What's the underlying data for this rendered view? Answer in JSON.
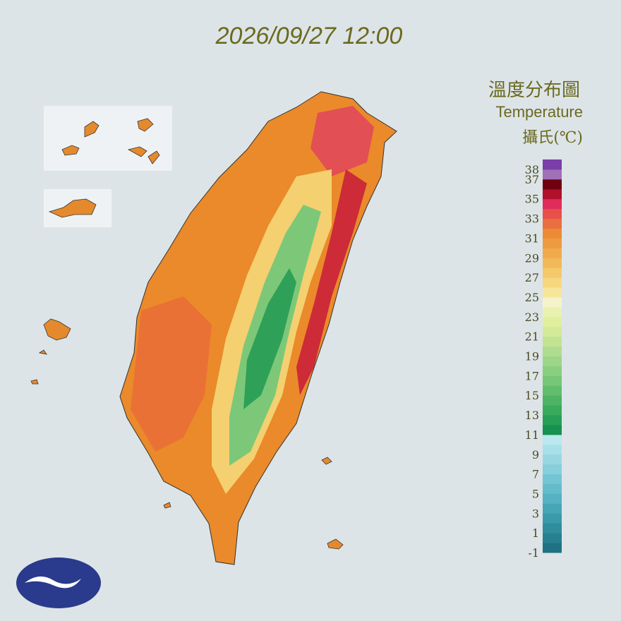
{
  "timestamp": "2026/09/27 12:00",
  "legend": {
    "title": "溫度分布圖",
    "subtitle": "Temperature",
    "unit": "攝氏(℃)",
    "range": [
      -1,
      39
    ],
    "ticks": [
      38,
      37,
      35,
      33,
      31,
      29,
      27,
      25,
      23,
      21,
      19,
      17,
      15,
      13,
      11,
      9,
      7,
      5,
      3,
      1,
      -1
    ],
    "colors": [
      "#1e7283",
      "#26808f",
      "#2f8d9c",
      "#3a9aaa",
      "#46a6b6",
      "#55b2c2",
      "#64bccb",
      "#74c5d3",
      "#86cfdb",
      "#98d7e2",
      "#a9dfe8",
      "#bae8ee",
      "#179150",
      "#27a055",
      "#3aaa5c",
      "#4eb464",
      "#62bd6c",
      "#76c676",
      "#8ace7f",
      "#9dd589",
      "#b0dc8f",
      "#c2e392",
      "#d3ea98",
      "#e0ef9e",
      "#e9f2b0",
      "#f4f3cc",
      "#f7e59a",
      "#f6d77e",
      "#f5c86a",
      "#f2b95a",
      "#f0aa4c",
      "#ee9a40",
      "#ec8a36",
      "#ea6e40",
      "#e8504a",
      "#e02c5a",
      "#b0102a",
      "#700010",
      "#a070b8",
      "#7a3ea8"
    ]
  }
}
